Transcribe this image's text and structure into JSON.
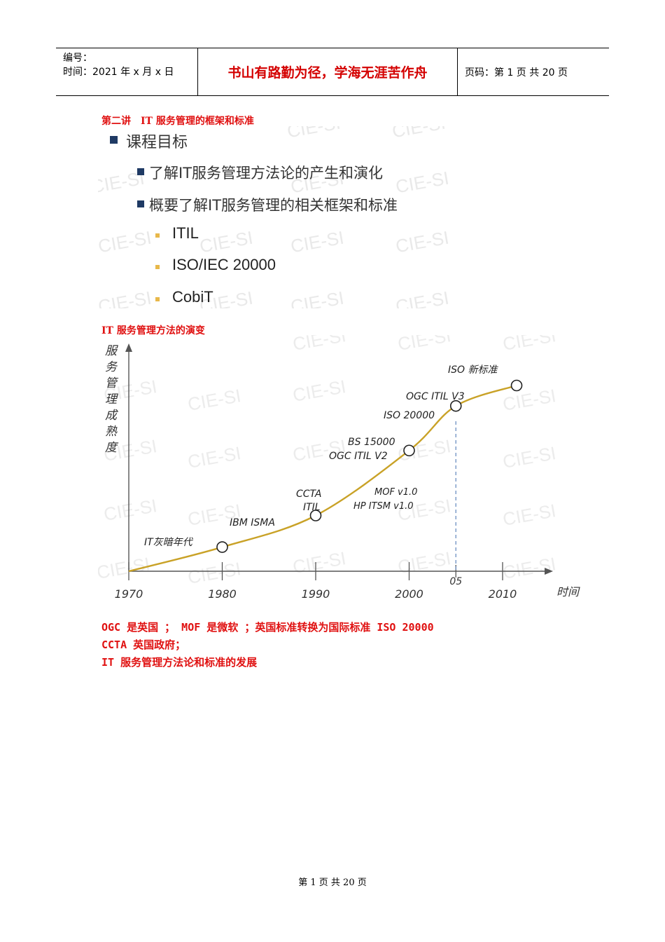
{
  "header": {
    "number_label": "编号：",
    "time_label": "时间：2021 年 x 月 x 日",
    "motto": "书山有路勤为径，学海无涯苦作舟",
    "page_label": "页码：第 1 页  共 20 页"
  },
  "section1_title": "第二讲　IT 服务管理的框架和标准",
  "slide1": {
    "heading": "课程目标",
    "items": [
      "了解IT服务管理方法论的产生和演化",
      "概要了解IT服务管理的相关框架和标准"
    ],
    "subitems": [
      "ITIL",
      "ISO/IEC 20000",
      "CobiT"
    ],
    "watermark": "CIE-SI"
  },
  "section2_title": "IT 服务管理方法的演变",
  "chart_data": {
    "type": "line",
    "ylabel": "服务管理成熟度",
    "xlabel": "时间",
    "x_ticks": [
      "1970",
      "1980",
      "1990",
      "2000",
      "05",
      "2010"
    ],
    "x_tick_values": [
      1970,
      1980,
      1990,
      2000,
      2005,
      2010
    ],
    "points": [
      {
        "x": 1980,
        "y": 1.3,
        "label": "IT灰暗年代"
      },
      {
        "x": 1990,
        "y": 3.0,
        "label": "CCTA\nITIL"
      },
      {
        "x": 2000,
        "y": 6.5,
        "label": "BS 15000\nOGC ITIL V2"
      },
      {
        "x": 2005,
        "y": 8.9,
        "label": "ISO 20000"
      },
      {
        "x": 2011.5,
        "y": 10.0,
        "label": "ISO 新标准"
      }
    ],
    "annotations": [
      {
        "text": "IBM ISMA"
      },
      {
        "text": "MOF v1.0"
      },
      {
        "text": "HP ITSM v1.0"
      },
      {
        "text": "OGC ITIL V3"
      }
    ],
    "watermark": "CIE-SI",
    "line_color": "#c9a227"
  },
  "notes": [
    "OGC 是英国 ； MOF 是微软  ；英国标准转换为国际标准 ISO 20000",
    "CCTA 英国政府；",
    "IT 服务管理方法论和标准的发展"
  ],
  "footer": "第  1  页  共  20  页"
}
